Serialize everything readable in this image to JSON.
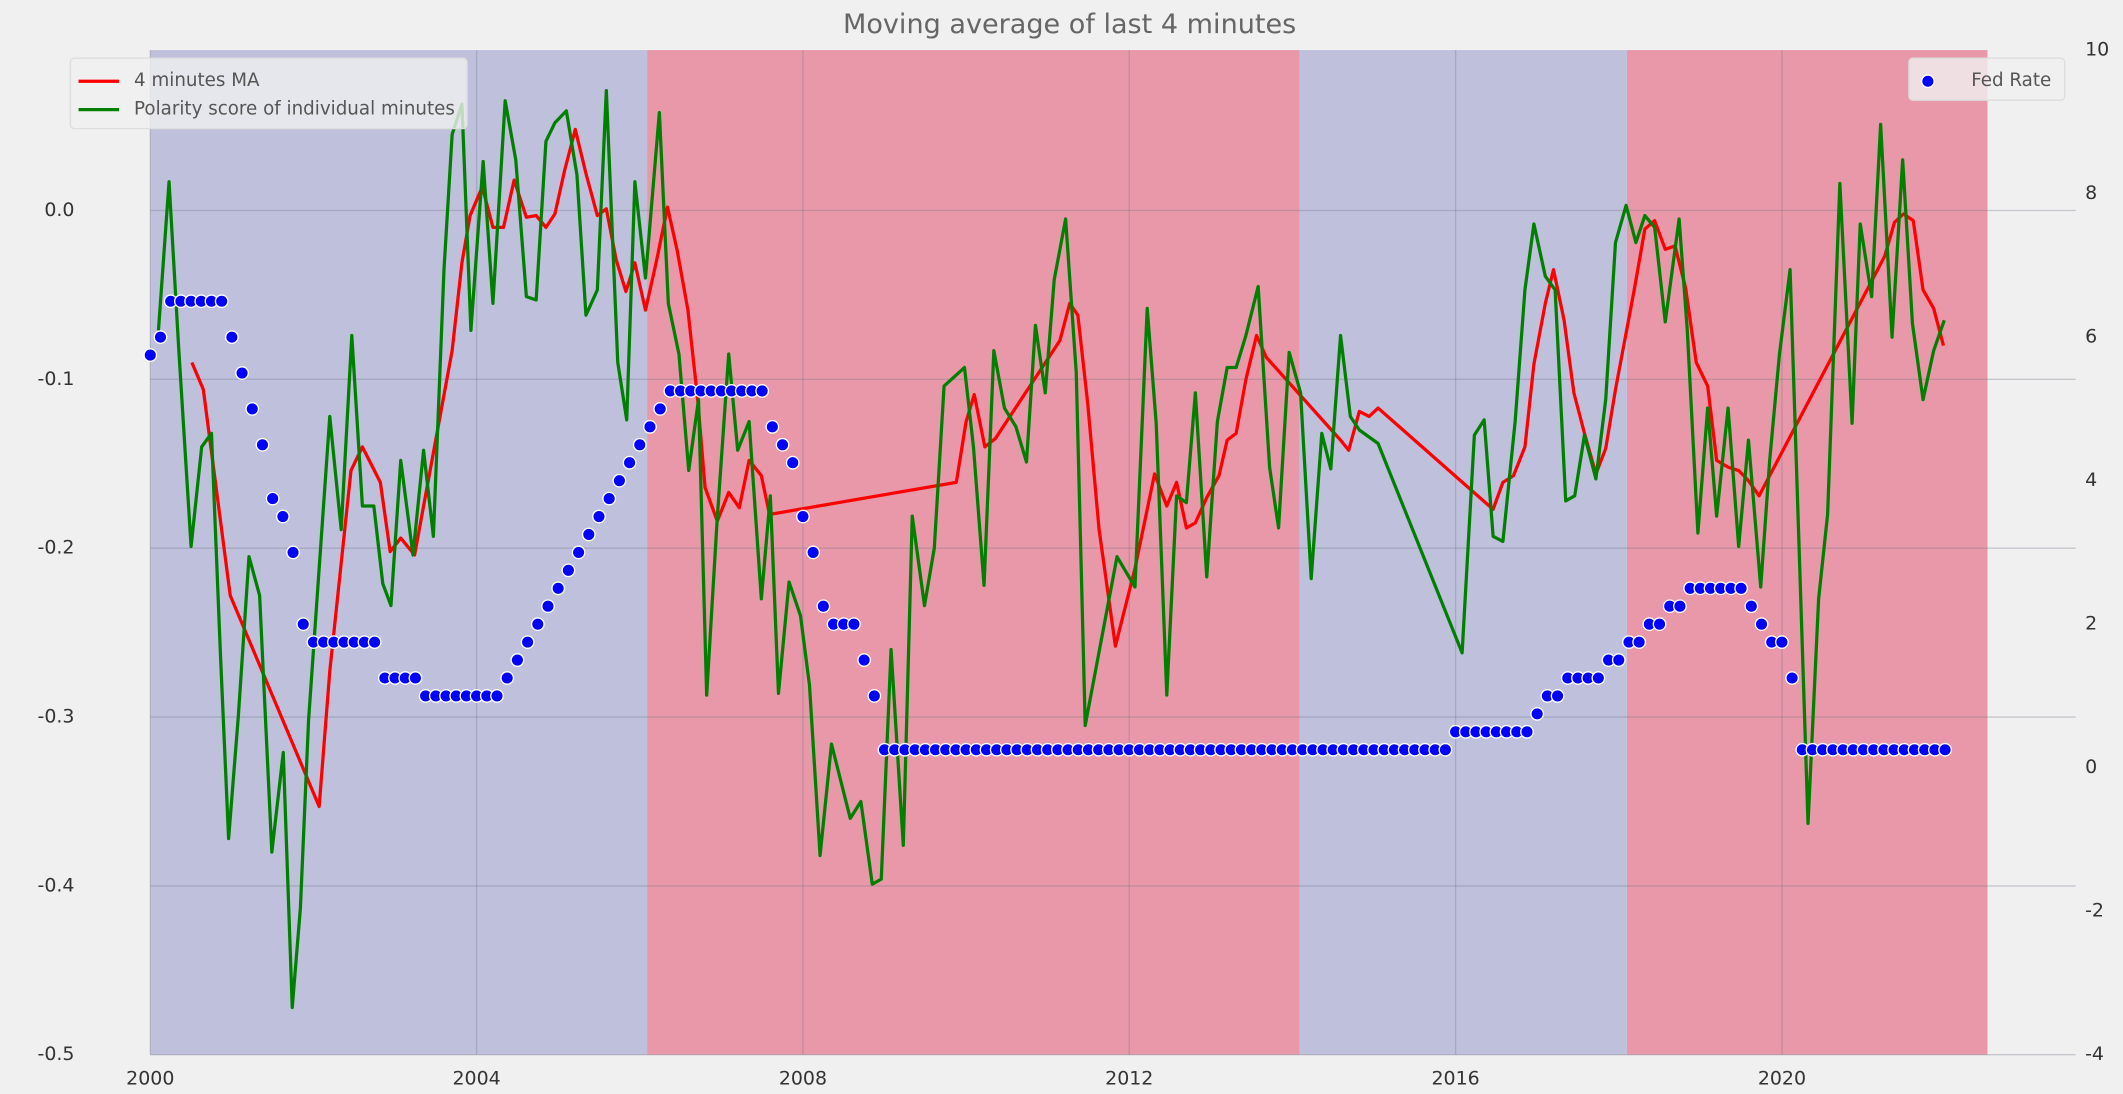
{
  "chart_data": {
    "type": "line",
    "title": "Moving average of last 4 minutes",
    "xlim": [
      2000,
      2023.6
    ],
    "xticks": [
      2000,
      2004,
      2008,
      2012,
      2016,
      2020
    ],
    "ylim": [
      -0.5,
      0.095
    ],
    "yticks": [
      -0.5,
      -0.4,
      -0.3,
      -0.2,
      -0.1,
      {
        "value": 0,
        "label": "0.0"
      }
    ],
    "y2lim": [
      -4,
      10
    ],
    "y2ticks": [
      -4,
      -2,
      0,
      2,
      4,
      6,
      8,
      10
    ],
    "grid": true,
    "legend": "upper left",
    "legend2": "upper right",
    "spans": [
      {
        "start": 2000,
        "end": 2006.09,
        "color": "#bfc0dc"
      },
      {
        "start": 2006.09,
        "end": 2014.09,
        "color": "#e898a8"
      },
      {
        "start": 2014.09,
        "end": 2018.1,
        "color": "#bfc0dc"
      },
      {
        "start": 2018.1,
        "end": 2022.52,
        "color": "#e898a8"
      }
    ],
    "series": [
      {
        "name": "4 minutes MA",
        "type": "line",
        "color": "#ff0000",
        "x": [
          2000.51,
          2000.65,
          2000.98,
          2002.07,
          2002.2,
          2002.46,
          2002.6,
          2002.82,
          2002.94,
          2003.07,
          2003.24,
          2003.7,
          2003.82,
          2003.92,
          2004.07,
          2004.2,
          2004.33,
          2004.46,
          2004.61,
          2004.73,
          2004.85,
          2004.96,
          2005.08,
          2005.21,
          2005.34,
          2005.48,
          2005.59,
          2005.71,
          2005.83,
          2005.94,
          2006.07,
          2006.2,
          2006.34,
          2006.46,
          2006.59,
          2006.71,
          2006.8,
          2006.95,
          2007.09,
          2007.22,
          2007.34,
          2007.49,
          2007.59,
          2009.88,
          2010.0,
          2010.1,
          2010.23,
          2010.36,
          2011.15,
          2011.27,
          2011.37,
          2011.49,
          2011.63,
          2011.83,
          2012.07,
          2012.31,
          2012.46,
          2012.58,
          2012.7,
          2012.81,
          2012.95,
          2013.1,
          2013.2,
          2013.31,
          2013.43,
          2013.56,
          2013.68,
          2014.59,
          2014.69,
          2014.82,
          2014.94,
          2015.05,
          2016.46,
          2016.58,
          2016.71,
          2016.85,
          2016.96,
          2017.1,
          2017.2,
          2017.33,
          2017.45,
          2017.58,
          2017.72,
          2017.84,
          2017.96,
          2018.19,
          2018.32,
          2018.44,
          2018.57,
          2018.69,
          2018.82,
          2018.95,
          2019.09,
          2019.2,
          2019.34,
          2019.47,
          2019.59,
          2019.72,
          2021.13,
          2021.26,
          2021.38,
          2021.49,
          2021.61,
          2021.73,
          2021.86,
          2021.98
        ],
        "values": [
          -0.09,
          -0.106,
          -0.228,
          -0.353,
          -0.273,
          -0.154,
          -0.14,
          -0.161,
          -0.202,
          -0.194,
          -0.204,
          -0.083,
          -0.031,
          -0.003,
          0.014,
          -0.01,
          -0.01,
          0.018,
          -0.004,
          -0.003,
          -0.01,
          -0.002,
          0.024,
          0.048,
          0.022,
          -0.003,
          0.001,
          -0.029,
          -0.048,
          -0.031,
          -0.059,
          -0.031,
          0.002,
          -0.024,
          -0.059,
          -0.112,
          -0.164,
          -0.184,
          -0.167,
          -0.176,
          -0.148,
          -0.157,
          -0.18,
          -0.161,
          -0.125,
          -0.109,
          -0.14,
          -0.135,
          -0.077,
          -0.055,
          -0.062,
          -0.114,
          -0.189,
          -0.258,
          -0.212,
          -0.156,
          -0.175,
          -0.161,
          -0.188,
          -0.185,
          -0.17,
          -0.157,
          -0.136,
          -0.132,
          -0.1,
          -0.074,
          -0.087,
          -0.136,
          -0.142,
          -0.119,
          -0.122,
          -0.117,
          -0.177,
          -0.161,
          -0.157,
          -0.14,
          -0.091,
          -0.055,
          -0.035,
          -0.065,
          -0.108,
          -0.132,
          -0.156,
          -0.141,
          -0.106,
          -0.047,
          -0.011,
          -0.006,
          -0.023,
          -0.021,
          -0.046,
          -0.09,
          -0.104,
          -0.148,
          -0.152,
          -0.154,
          -0.16,
          -0.169,
          -0.039,
          -0.027,
          -0.007,
          -0.002,
          -0.006,
          -0.047,
          -0.058,
          -0.08
        ]
      },
      {
        "name": "Polarity score of individual minutes",
        "type": "line",
        "color": "#008000",
        "x": [
          2000.1,
          2000.23,
          2000.35,
          2000.5,
          2000.63,
          2000.75,
          2000.86,
          2000.96,
          2001.08,
          2001.21,
          2001.34,
          2001.49,
          2001.63,
          2001.74,
          2001.84,
          2001.94,
          2002.2,
          2002.34,
          2002.47,
          2002.6,
          2002.74,
          2002.85,
          2002.95,
          2003.07,
          2003.22,
          2003.35,
          2003.47,
          2003.6,
          2003.7,
          2003.82,
          2003.93,
          2004.08,
          2004.2,
          2004.35,
          2004.48,
          2004.61,
          2004.73,
          2004.85,
          2004.96,
          2005.1,
          2005.23,
          2005.34,
          2005.48,
          2005.59,
          2005.73,
          2005.84,
          2005.94,
          2006.07,
          2006.24,
          2006.35,
          2006.48,
          2006.6,
          2006.72,
          2006.82,
          2006.95,
          2007.09,
          2007.2,
          2007.34,
          2007.49,
          2007.6,
          2007.7,
          2007.83,
          2007.97,
          2008.08,
          2008.21,
          2008.35,
          2008.58,
          2008.71,
          2008.85,
          2008.96,
          2009.08,
          2009.23,
          2009.34,
          2009.49,
          2009.61,
          2009.73,
          2009.98,
          2010.09,
          2010.22,
          2010.34,
          2010.47,
          2010.61,
          2010.74,
          2010.85,
          2010.97,
          2011.08,
          2011.22,
          2011.35,
          2011.46,
          2011.85,
          2012.07,
          2012.22,
          2012.33,
          2012.46,
          2012.58,
          2012.7,
          2012.81,
          2012.95,
          2013.08,
          2013.2,
          2013.31,
          2013.43,
          2013.58,
          2013.72,
          2013.83,
          2013.96,
          2014.1,
          2014.23,
          2014.36,
          2014.47,
          2014.59,
          2014.71,
          2014.82,
          2015.05,
          2016.08,
          2016.23,
          2016.35,
          2016.46,
          2016.58,
          2016.73,
          2016.85,
          2016.96,
          2017.1,
          2017.22,
          2017.35,
          2017.46,
          2017.58,
          2017.72,
          2017.84,
          2017.96,
          2018.09,
          2018.21,
          2018.32,
          2018.44,
          2018.57,
          2018.74,
          2018.84,
          2018.97,
          2019.09,
          2019.2,
          2019.34,
          2019.47,
          2019.59,
          2019.74,
          2019.85,
          2019.97,
          2020.1,
          2020.32,
          2020.45,
          2020.56,
          2020.71,
          2020.86,
          2020.96,
          2021.1,
          2021.21,
          2021.35,
          2021.48,
          2021.6,
          2021.73,
          2021.86,
          2021.99
        ],
        "values": [
          -0.071,
          0.017,
          -0.083,
          -0.199,
          -0.14,
          -0.132,
          -0.263,
          -0.372,
          -0.299,
          -0.205,
          -0.228,
          -0.38,
          -0.321,
          -0.472,
          -0.413,
          -0.302,
          -0.122,
          -0.189,
          -0.074,
          -0.175,
          -0.175,
          -0.221,
          -0.234,
          -0.148,
          -0.204,
          -0.142,
          -0.193,
          -0.035,
          0.045,
          0.063,
          -0.071,
          0.029,
          -0.055,
          0.065,
          0.03,
          -0.051,
          -0.053,
          0.041,
          0.052,
          0.059,
          0.021,
          -0.062,
          -0.047,
          0.071,
          -0.09,
          -0.124,
          0.017,
          -0.04,
          0.058,
          -0.055,
          -0.085,
          -0.154,
          -0.112,
          -0.287,
          -0.182,
          -0.085,
          -0.142,
          -0.125,
          -0.23,
          -0.169,
          -0.286,
          -0.22,
          -0.24,
          -0.281,
          -0.382,
          -0.316,
          -0.36,
          -0.35,
          -0.399,
          -0.396,
          -0.26,
          -0.376,
          -0.181,
          -0.234,
          -0.2,
          -0.104,
          -0.093,
          -0.14,
          -0.222,
          -0.083,
          -0.117,
          -0.128,
          -0.149,
          -0.068,
          -0.108,
          -0.041,
          -0.005,
          -0.096,
          -0.305,
          -0.205,
          -0.223,
          -0.058,
          -0.126,
          -0.287,
          -0.169,
          -0.173,
          -0.108,
          -0.217,
          -0.125,
          -0.093,
          -0.093,
          -0.074,
          -0.045,
          -0.152,
          -0.188,
          -0.084,
          -0.108,
          -0.218,
          -0.132,
          -0.153,
          -0.074,
          -0.122,
          -0.13,
          -0.138,
          -0.262,
          -0.133,
          -0.124,
          -0.193,
          -0.196,
          -0.125,
          -0.047,
          -0.008,
          -0.039,
          -0.047,
          -0.172,
          -0.169,
          -0.133,
          -0.159,
          -0.112,
          -0.019,
          0.003,
          -0.019,
          -0.003,
          -0.01,
          -0.066,
          -0.005,
          -0.071,
          -0.191,
          -0.117,
          -0.181,
          -0.117,
          -0.199,
          -0.136,
          -0.223,
          -0.148,
          -0.085,
          -0.035,
          -0.363,
          -0.23,
          -0.18,
          0.016,
          -0.126,
          -0.008,
          -0.051,
          0.051,
          -0.075,
          0.03,
          -0.067,
          -0.112,
          -0.083,
          -0.065
        ]
      },
      {
        "name": "Fed Rate",
        "type": "scatter",
        "axis": "y2",
        "color": "#0000ff",
        "x": [
          2000,
          2000.125,
          2000.25,
          2000.375,
          2000.5,
          2000.625,
          2000.75,
          2000.875,
          2001,
          2001.125,
          2001.25,
          2001.375,
          2001.5,
          2001.625,
          2001.75,
          2001.875,
          2002,
          2002.125,
          2002.25,
          2002.375,
          2002.5,
          2002.625,
          2002.75,
          2002.875,
          2003,
          2003.125,
          2003.25,
          2003.375,
          2003.5,
          2003.625,
          2003.75,
          2003.875,
          2004,
          2004.125,
          2004.25,
          2004.375,
          2004.5,
          2004.625,
          2004.75,
          2004.875,
          2005,
          2005.125,
          2005.25,
          2005.375,
          2005.5,
          2005.625,
          2005.75,
          2005.875,
          2006,
          2006.125,
          2006.25,
          2006.375,
          2006.5,
          2006.625,
          2006.75,
          2006.875,
          2007,
          2007.125,
          2007.25,
          2007.375,
          2007.5,
          2007.625,
          2007.75,
          2007.875,
          2008,
          2008.125,
          2008.25,
          2008.375,
          2008.5,
          2008.625,
          2008.75,
          2008.875,
          2009,
          2009.125,
          2009.25,
          2009.375,
          2009.5,
          2009.625,
          2009.75,
          2009.875,
          2010,
          2010.125,
          2010.25,
          2010.375,
          2010.5,
          2010.625,
          2010.75,
          2010.875,
          2011,
          2011.125,
          2011.25,
          2011.375,
          2011.5,
          2011.625,
          2011.75,
          2011.875,
          2012,
          2012.125,
          2012.25,
          2012.375,
          2012.5,
          2012.625,
          2012.75,
          2012.875,
          2013,
          2013.125,
          2013.25,
          2013.375,
          2013.5,
          2013.625,
          2013.75,
          2013.875,
          2014,
          2014.125,
          2014.25,
          2014.375,
          2014.5,
          2014.625,
          2014.75,
          2014.875,
          2015,
          2015.125,
          2015.25,
          2015.375,
          2015.5,
          2015.625,
          2015.75,
          2015.875,
          2016,
          2016.125,
          2016.25,
          2016.375,
          2016.5,
          2016.625,
          2016.75,
          2016.875,
          2017,
          2017.125,
          2017.25,
          2017.375,
          2017.5,
          2017.625,
          2017.75,
          2017.875,
          2018,
          2018.125,
          2018.25,
          2018.375,
          2018.5,
          2018.625,
          2018.75,
          2018.875,
          2019,
          2019.125,
          2019.25,
          2019.375,
          2019.5,
          2019.625,
          2019.75,
          2019.875,
          2020,
          2020.125,
          2020.25,
          2020.375,
          2020.5,
          2020.625,
          2020.75,
          2020.875,
          2021,
          2021.125,
          2021.25,
          2021.375,
          2021.5,
          2021.625,
          2021.75,
          2021.875,
          2022
        ],
        "values": [
          5.75,
          6,
          6.5,
          6.5,
          6.5,
          6.5,
          6.5,
          6.5,
          6,
          5.5,
          5,
          4.5,
          3.75,
          3.5,
          3,
          2,
          1.75,
          1.75,
          1.75,
          1.75,
          1.75,
          1.75,
          1.75,
          1.25,
          1.25,
          1.25,
          1.25,
          1,
          1,
          1,
          1,
          1,
          1,
          1,
          1,
          1.25,
          1.5,
          1.75,
          2,
          2.25,
          2.5,
          2.75,
          3,
          3.25,
          3.5,
          3.75,
          4,
          4.25,
          4.5,
          4.75,
          5,
          5.25,
          5.25,
          5.25,
          5.25,
          5.25,
          5.25,
          5.25,
          5.25,
          5.25,
          5.25,
          4.75,
          4.5,
          4.25,
          3.5,
          3,
          2.25,
          2,
          2,
          2,
          1.5,
          1,
          0.25,
          0.25,
          0.25,
          0.25,
          0.25,
          0.25,
          0.25,
          0.25,
          0.25,
          0.25,
          0.25,
          0.25,
          0.25,
          0.25,
          0.25,
          0.25,
          0.25,
          0.25,
          0.25,
          0.25,
          0.25,
          0.25,
          0.25,
          0.25,
          0.25,
          0.25,
          0.25,
          0.25,
          0.25,
          0.25,
          0.25,
          0.25,
          0.25,
          0.25,
          0.25,
          0.25,
          0.25,
          0.25,
          0.25,
          0.25,
          0.25,
          0.25,
          0.25,
          0.25,
          0.25,
          0.25,
          0.25,
          0.25,
          0.25,
          0.25,
          0.25,
          0.25,
          0.25,
          0.25,
          0.25,
          0.25,
          0.5,
          0.5,
          0.5,
          0.5,
          0.5,
          0.5,
          0.5,
          0.5,
          0.75,
          1,
          1,
          1.25,
          1.25,
          1.25,
          1.25,
          1.5,
          1.5,
          1.75,
          1.75,
          2,
          2,
          2.25,
          2.25,
          2.5,
          2.5,
          2.5,
          2.5,
          2.5,
          2.5,
          2.25,
          2,
          1.75,
          1.75,
          1.25,
          0.25,
          0.25,
          0.25,
          0.25,
          0.25,
          0.25,
          0.25,
          0.25,
          0.25,
          0.25,
          0.25,
          0.25,
          0.25,
          0.25,
          0.25
        ]
      }
    ]
  }
}
